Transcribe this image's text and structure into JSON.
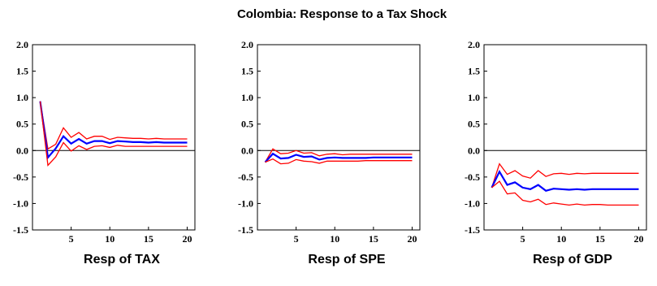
{
  "figure": {
    "title": "Colombia: Response to a Tax Shock"
  },
  "colors": {
    "mean": "#0000ff",
    "bands": "#ff0000",
    "axis": "#000000"
  },
  "chart_data": [
    {
      "type": "line",
      "title": "Resp of TAX",
      "xlabel": "",
      "ylabel": "",
      "x": [
        1,
        2,
        3,
        4,
        5,
        6,
        7,
        8,
        9,
        10,
        11,
        12,
        13,
        14,
        15,
        16,
        17,
        18,
        19,
        20
      ],
      "xlim": [
        0,
        21
      ],
      "ylim": [
        -1.5,
        2.0
      ],
      "x_ticks": [
        "5",
        "10",
        "15",
        "20"
      ],
      "y_ticks": [
        "2.0",
        "1.5",
        "1.0",
        "0.5",
        "0.0",
        "-0.5",
        "-1.0",
        "-1.5"
      ],
      "zero_line": true,
      "series": [
        {
          "role": "upper",
          "color": "#ff0000",
          "values": [
            0.93,
            0.03,
            0.12,
            0.43,
            0.25,
            0.34,
            0.22,
            0.27,
            0.27,
            0.21,
            0.25,
            0.24,
            0.23,
            0.23,
            0.22,
            0.23,
            0.22,
            0.22,
            0.22,
            0.22
          ]
        },
        {
          "role": "response",
          "color": "#0000ff",
          "values": [
            0.93,
            -0.13,
            0.04,
            0.27,
            0.13,
            0.22,
            0.13,
            0.18,
            0.18,
            0.14,
            0.18,
            0.17,
            0.16,
            0.16,
            0.15,
            0.16,
            0.15,
            0.15,
            0.15,
            0.15
          ]
        },
        {
          "role": "lower",
          "color": "#ff0000",
          "values": [
            0.93,
            -0.28,
            -0.12,
            0.15,
            -0.01,
            0.09,
            0.02,
            0.08,
            0.09,
            0.06,
            0.1,
            0.08,
            0.08,
            0.08,
            0.08,
            0.08,
            0.08,
            0.08,
            0.08,
            0.08
          ]
        }
      ]
    },
    {
      "type": "line",
      "title": "Resp of SPE",
      "xlabel": "",
      "ylabel": "",
      "x": [
        1,
        2,
        3,
        4,
        5,
        6,
        7,
        8,
        9,
        10,
        11,
        12,
        13,
        14,
        15,
        16,
        17,
        18,
        19,
        20
      ],
      "xlim": [
        0,
        21
      ],
      "ylim": [
        -1.5,
        2.0
      ],
      "x_ticks": [
        "5",
        "10",
        "15",
        "20"
      ],
      "y_ticks": [
        "2.0",
        "1.5",
        "1.0",
        "0.5",
        "0.0",
        "-0.5",
        "-1.0",
        "-1.5"
      ],
      "zero_line": true,
      "series": [
        {
          "role": "upper",
          "color": "#ff0000",
          "values": [
            -0.22,
            0.03,
            -0.06,
            -0.05,
            0.0,
            -0.05,
            -0.04,
            -0.1,
            -0.07,
            -0.06,
            -0.08,
            -0.07,
            -0.07,
            -0.07,
            -0.07,
            -0.07,
            -0.07,
            -0.07,
            -0.07,
            -0.07
          ]
        },
        {
          "role": "response",
          "color": "#0000ff",
          "values": [
            -0.22,
            -0.06,
            -0.15,
            -0.14,
            -0.08,
            -0.12,
            -0.11,
            -0.17,
            -0.14,
            -0.13,
            -0.14,
            -0.14,
            -0.14,
            -0.14,
            -0.13,
            -0.13,
            -0.13,
            -0.13,
            -0.13,
            -0.13
          ]
        },
        {
          "role": "lower",
          "color": "#ff0000",
          "values": [
            -0.22,
            -0.16,
            -0.25,
            -0.24,
            -0.17,
            -0.2,
            -0.21,
            -0.24,
            -0.2,
            -0.2,
            -0.2,
            -0.2,
            -0.2,
            -0.19,
            -0.19,
            -0.19,
            -0.19,
            -0.19,
            -0.19,
            -0.19
          ]
        }
      ]
    },
    {
      "type": "line",
      "title": "Resp of GDP",
      "xlabel": "",
      "ylabel": "",
      "x": [
        1,
        2,
        3,
        4,
        5,
        6,
        7,
        8,
        9,
        10,
        11,
        12,
        13,
        14,
        15,
        16,
        17,
        18,
        19,
        20
      ],
      "xlim": [
        0,
        21
      ],
      "ylim": [
        -1.5,
        2.0
      ],
      "x_ticks": [
        "5",
        "10",
        "15",
        "20"
      ],
      "y_ticks": [
        "2.0",
        "1.5",
        "1.0",
        "0.5",
        "0.0",
        "-0.5",
        "-1.0",
        "-1.5"
      ],
      "zero_line": true,
      "series": [
        {
          "role": "upper",
          "color": "#ff0000",
          "values": [
            -0.7,
            -0.25,
            -0.45,
            -0.38,
            -0.48,
            -0.52,
            -0.38,
            -0.49,
            -0.44,
            -0.43,
            -0.45,
            -0.43,
            -0.44,
            -0.43,
            -0.43,
            -0.43,
            -0.43,
            -0.43,
            -0.43,
            -0.43
          ]
        },
        {
          "role": "response",
          "color": "#0000ff",
          "values": [
            -0.7,
            -0.4,
            -0.65,
            -0.6,
            -0.7,
            -0.73,
            -0.65,
            -0.76,
            -0.72,
            -0.73,
            -0.74,
            -0.73,
            -0.74,
            -0.73,
            -0.73,
            -0.73,
            -0.73,
            -0.73,
            -0.73,
            -0.73
          ]
        },
        {
          "role": "lower",
          "color": "#ff0000",
          "values": [
            -0.7,
            -0.58,
            -0.82,
            -0.8,
            -0.94,
            -0.97,
            -0.92,
            -1.02,
            -0.99,
            -1.01,
            -1.03,
            -1.01,
            -1.03,
            -1.02,
            -1.02,
            -1.03,
            -1.03,
            -1.03,
            -1.03,
            -1.03
          ]
        }
      ]
    }
  ]
}
